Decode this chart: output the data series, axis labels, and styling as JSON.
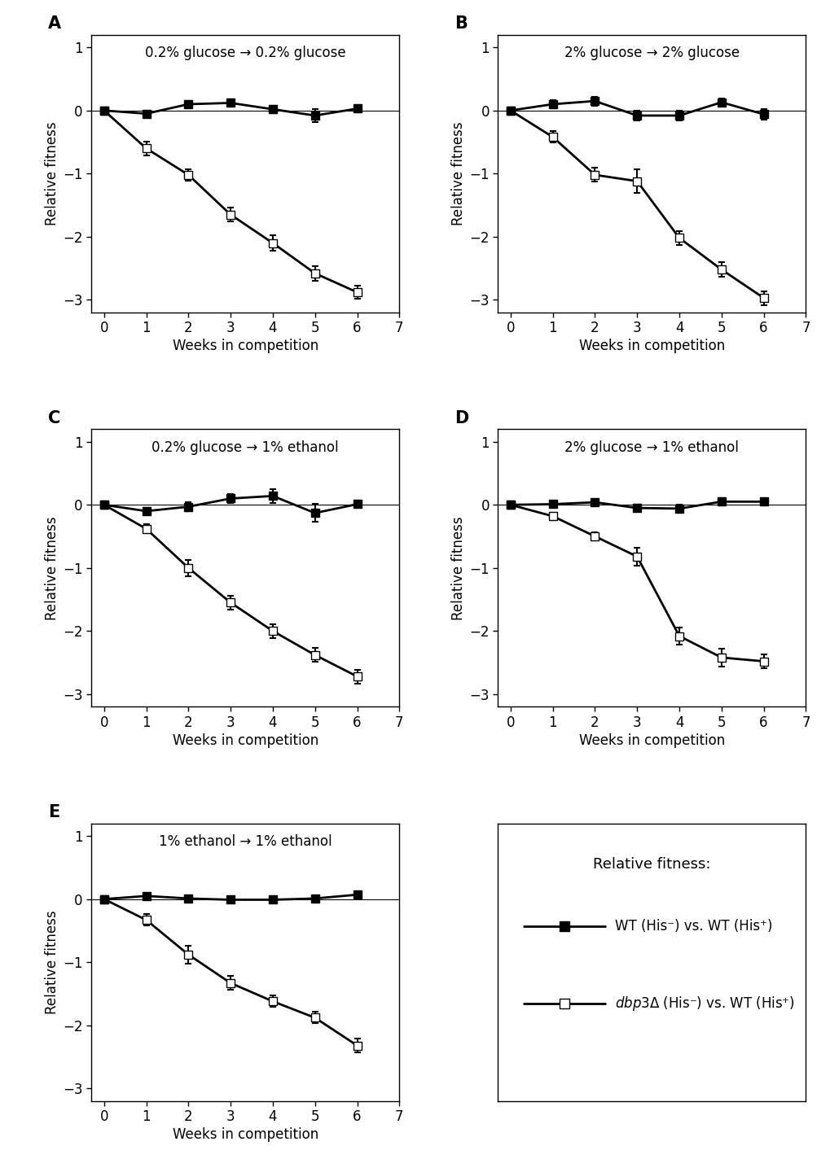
{
  "weeks": [
    0,
    1,
    2,
    3,
    4,
    5,
    6
  ],
  "panels": [
    {
      "label": "A",
      "title": "0.2% glucose → 0.2% glucose",
      "wt_y": [
        0,
        -0.05,
        0.1,
        0.12,
        0.02,
        -0.08,
        0.03
      ],
      "wt_err": [
        0,
        0.04,
        0.05,
        0.06,
        0.06,
        0.1,
        0.06
      ],
      "mut_y": [
        0,
        -0.6,
        -1.02,
        -1.65,
        -2.1,
        -2.58,
        -2.88
      ],
      "mut_err": [
        0,
        0.11,
        0.09,
        0.11,
        0.12,
        0.12,
        0.1
      ]
    },
    {
      "label": "B",
      "title": "2% glucose → 2% glucose",
      "wt_y": [
        0,
        0.1,
        0.15,
        -0.08,
        -0.08,
        0.13,
        -0.06
      ],
      "wt_err": [
        0,
        0.06,
        0.07,
        0.08,
        0.08,
        0.06,
        0.08
      ],
      "mut_y": [
        0,
        -0.42,
        -1.02,
        -1.12,
        -2.02,
        -2.52,
        -2.97
      ],
      "mut_err": [
        0,
        0.09,
        0.11,
        0.19,
        0.11,
        0.12,
        0.11
      ]
    },
    {
      "label": "C",
      "title": "0.2% glucose → 1% ethanol",
      "wt_y": [
        0,
        -0.1,
        -0.03,
        0.1,
        0.14,
        -0.13,
        0.01
      ],
      "wt_err": [
        0,
        0.05,
        0.07,
        0.07,
        0.11,
        0.14,
        0.06
      ],
      "mut_y": [
        0,
        -0.38,
        -1.0,
        -1.55,
        -2.0,
        -2.38,
        -2.72
      ],
      "mut_err": [
        0,
        0.07,
        0.13,
        0.11,
        0.11,
        0.11,
        0.11
      ]
    },
    {
      "label": "D",
      "title": "2% glucose → 1% ethanol",
      "wt_y": [
        0,
        0.01,
        0.04,
        -0.05,
        -0.06,
        0.05,
        0.05
      ],
      "wt_err": [
        0,
        0.03,
        0.04,
        0.05,
        0.06,
        0.05,
        0.04
      ],
      "mut_y": [
        0,
        -0.18,
        -0.5,
        -0.82,
        -2.08,
        -2.42,
        -2.48
      ],
      "mut_err": [
        0,
        0.06,
        0.07,
        0.14,
        0.14,
        0.14,
        0.11
      ]
    },
    {
      "label": "E",
      "title": "1% ethanol → 1% ethanol",
      "wt_y": [
        0,
        0.05,
        0.01,
        -0.01,
        -0.01,
        0.01,
        0.07
      ],
      "wt_err": [
        0,
        0.04,
        0.03,
        0.03,
        0.03,
        0.03,
        0.04
      ],
      "mut_y": [
        0,
        -0.33,
        -0.88,
        -1.33,
        -1.62,
        -1.88,
        -2.32
      ],
      "mut_err": [
        0,
        0.09,
        0.14,
        0.11,
        0.09,
        0.09,
        0.11
      ]
    }
  ],
  "xlabel": "Weeks in competition",
  "ylabel": "Relative fitness",
  "ylim": [
    -3.2,
    1.2
  ],
  "yticks": [
    -3,
    -2,
    -1,
    0,
    1
  ],
  "xlim": [
    -0.3,
    7.0
  ],
  "xticks": [
    0,
    1,
    2,
    3,
    4,
    5,
    6,
    7
  ],
  "legend_title": "Relative fitness:",
  "legend_wt_label": "WT (His⁻) vs. WT (His⁺)",
  "legend_mut_label": " (His⁻) vs. WT (His⁺)",
  "linewidth": 2.0,
  "markersize": 7,
  "capsize": 3,
  "elinewidth": 1.5
}
